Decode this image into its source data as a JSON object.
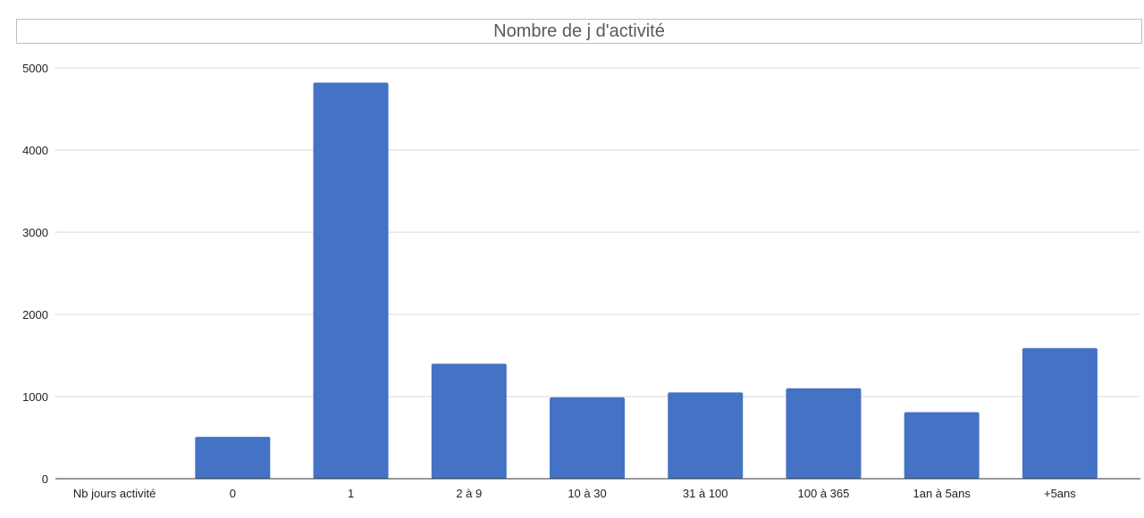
{
  "chart_data": {
    "type": "bar",
    "title": "Nombre de j d'activité",
    "xlabel": "",
    "ylabel": "",
    "categories": [
      "Nb jours activité",
      "0",
      "1",
      "2 à 9",
      "10 à 30",
      "31 à 100",
      "100 à 365",
      "1an à 5ans",
      "+5ans"
    ],
    "values": [
      0,
      510,
      4820,
      1400,
      990,
      1050,
      1100,
      810,
      1590
    ],
    "ylim": [
      0,
      5000
    ],
    "yticks": [
      "0",
      "1000",
      "2000",
      "3000",
      "4000",
      "5000"
    ],
    "grid": true,
    "legend": "none",
    "bar_color": "#4472c4",
    "grid_color": "#d9d9d9"
  }
}
